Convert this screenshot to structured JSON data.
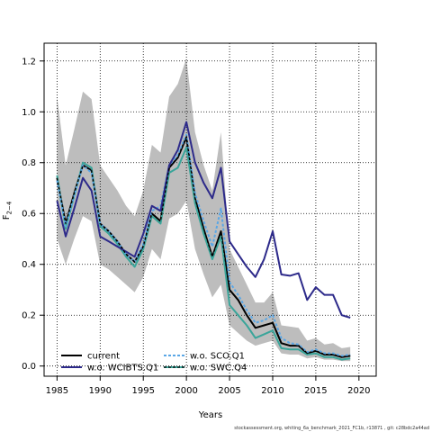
{
  "chart_data": {
    "type": "line",
    "xlabel": "Years",
    "ylabel_base": "F",
    "ylabel_sub": "2−4",
    "xlim": [
      1983.5,
      2022
    ],
    "ylim": [
      -0.04,
      1.27
    ],
    "x_ticks": [
      1985,
      1990,
      1995,
      2000,
      2005,
      2010,
      2015,
      2020
    ],
    "y_ticks": [
      0.0,
      0.2,
      0.4,
      0.6,
      0.8,
      1.0,
      1.2
    ],
    "y_tick_labels": [
      "0.0",
      "0.2",
      "0.4",
      "0.6",
      "0.8",
      "1.0",
      "1.2"
    ],
    "grid": true,
    "legend_position": "bottom-left",
    "footnote": "stockassessment.org, whiting_6a_benchmark_2021_FC1b, r13871 , git: c28bdc2a44ad",
    "band": {
      "color": "#bdbdbd",
      "years": [
        1985,
        1986,
        1987,
        1988,
        1989,
        1990,
        1991,
        1992,
        1993,
        1994,
        1995,
        1996,
        1997,
        1998,
        1999,
        2000,
        2001,
        2002,
        2003,
        2004,
        2005,
        2006,
        2007,
        2008,
        2009,
        2010,
        2011,
        2012,
        2013,
        2014,
        2015,
        2016,
        2017,
        2018,
        2019
      ],
      "upper": [
        1.06,
        0.79,
        0.93,
        1.08,
        1.05,
        0.79,
        0.74,
        0.69,
        0.63,
        0.59,
        0.69,
        0.87,
        0.84,
        1.06,
        1.11,
        1.21,
        0.92,
        0.79,
        0.69,
        0.92,
        0.46,
        0.39,
        0.32,
        0.25,
        0.25,
        0.29,
        0.16,
        0.155,
        0.15,
        0.1,
        0.11,
        0.085,
        0.09,
        0.07,
        0.075
      ],
      "lower": [
        0.5,
        0.4,
        0.5,
        0.59,
        0.57,
        0.4,
        0.38,
        0.35,
        0.32,
        0.29,
        0.35,
        0.46,
        0.42,
        0.58,
        0.6,
        0.65,
        0.46,
        0.36,
        0.27,
        0.32,
        0.16,
        0.13,
        0.1,
        0.08,
        0.09,
        0.1,
        0.05,
        0.045,
        0.045,
        0.03,
        0.035,
        0.025,
        0.025,
        0.02,
        0.02
      ]
    },
    "series": [
      {
        "name": "current",
        "color": "#000000",
        "dash": "",
        "legend_col": 0,
        "legend_row": 0,
        "years": [
          1985,
          1986,
          1987,
          1988,
          1989,
          1990,
          1991,
          1992,
          1993,
          1994,
          1995,
          1996,
          1997,
          1998,
          1999,
          2000,
          2001,
          2002,
          2003,
          2004,
          2005,
          2006,
          2007,
          2008,
          2009,
          2010,
          2011,
          2012,
          2013,
          2014,
          2015,
          2016,
          2017,
          2018,
          2019
        ],
        "values": [
          0.74,
          0.56,
          0.68,
          0.79,
          0.77,
          0.56,
          0.53,
          0.49,
          0.44,
          0.41,
          0.47,
          0.6,
          0.57,
          0.78,
          0.82,
          0.9,
          0.66,
          0.54,
          0.43,
          0.53,
          0.3,
          0.26,
          0.2,
          0.15,
          0.16,
          0.17,
          0.09,
          0.08,
          0.08,
          0.05,
          0.06,
          0.045,
          0.045,
          0.035,
          0.04
        ]
      },
      {
        "name": "w.o. WCIBTS.Q1",
        "color": "#2d2a8a",
        "dash": "",
        "legend_col": 0,
        "legend_row": 1,
        "years": [
          1985,
          1986,
          1987,
          1988,
          1989,
          1990,
          1991,
          1992,
          1993,
          1994,
          1995,
          1996,
          1997,
          1998,
          1999,
          2000,
          2001,
          2002,
          2003,
          2004,
          2005,
          2006,
          2007,
          2008,
          2009,
          2010,
          2011,
          2012,
          2013,
          2014,
          2015,
          2016,
          2017,
          2018,
          2019
        ],
        "values": [
          0.65,
          0.51,
          0.62,
          0.74,
          0.69,
          0.51,
          0.49,
          0.47,
          0.45,
          0.43,
          0.52,
          0.63,
          0.61,
          0.79,
          0.85,
          0.96,
          0.8,
          0.72,
          0.66,
          0.78,
          0.49,
          0.44,
          0.39,
          0.35,
          0.42,
          0.53,
          0.36,
          0.355,
          0.365,
          0.26,
          0.31,
          0.28,
          0.28,
          0.2,
          0.19
        ]
      },
      {
        "name": "w.o. SCO.Q1",
        "color": "#5aa7e6",
        "dash": "3,2",
        "legend_col": 1,
        "legend_row": 0,
        "years": [
          1985,
          1986,
          1987,
          1988,
          1989,
          1990,
          1991,
          1992,
          1993,
          1994,
          1995,
          1996,
          1997,
          1998,
          1999,
          2000,
          2001,
          2002,
          2003,
          2004,
          2005,
          2006,
          2007,
          2008,
          2009,
          2010,
          2011,
          2012,
          2013,
          2014,
          2015,
          2016,
          2017,
          2018,
          2019
        ],
        "values": [
          0.73,
          0.55,
          0.67,
          0.79,
          0.76,
          0.56,
          0.53,
          0.49,
          0.44,
          0.41,
          0.48,
          0.61,
          0.63,
          0.79,
          0.83,
          0.91,
          0.68,
          0.57,
          0.47,
          0.62,
          0.33,
          0.28,
          0.22,
          0.17,
          0.18,
          0.2,
          0.11,
          0.09,
          0.085,
          0.055,
          0.065,
          0.05,
          0.05,
          0.04,
          0.045
        ]
      },
      {
        "name": "w.o. SWC.Q4",
        "color": "#3aa59a",
        "dash": "",
        "legend_col": 1,
        "legend_row": 1,
        "years": [
          1985,
          1986,
          1987,
          1988,
          1989,
          1990,
          1991,
          1992,
          1993,
          1994,
          1995,
          1996,
          1997,
          1998,
          1999,
          2000,
          2001,
          2002,
          2003,
          2004,
          2005,
          2006,
          2007,
          2008,
          2009,
          2010,
          2011,
          2012,
          2013,
          2014,
          2015,
          2016,
          2017,
          2018,
          2019
        ],
        "values": [
          0.75,
          0.54,
          0.67,
          0.8,
          0.78,
          0.55,
          0.52,
          0.48,
          0.43,
          0.39,
          0.46,
          0.59,
          0.56,
          0.76,
          0.78,
          0.86,
          0.64,
          0.52,
          0.42,
          0.51,
          0.24,
          0.2,
          0.16,
          0.11,
          0.125,
          0.14,
          0.07,
          0.065,
          0.065,
          0.045,
          0.05,
          0.035,
          0.035,
          0.025,
          0.03
        ]
      }
    ],
    "black_dash_overlay": {
      "name": "w.o. SWC.Q4 dashes",
      "color": "#000000",
      "dash": "3,2",
      "series_index": 0
    }
  }
}
